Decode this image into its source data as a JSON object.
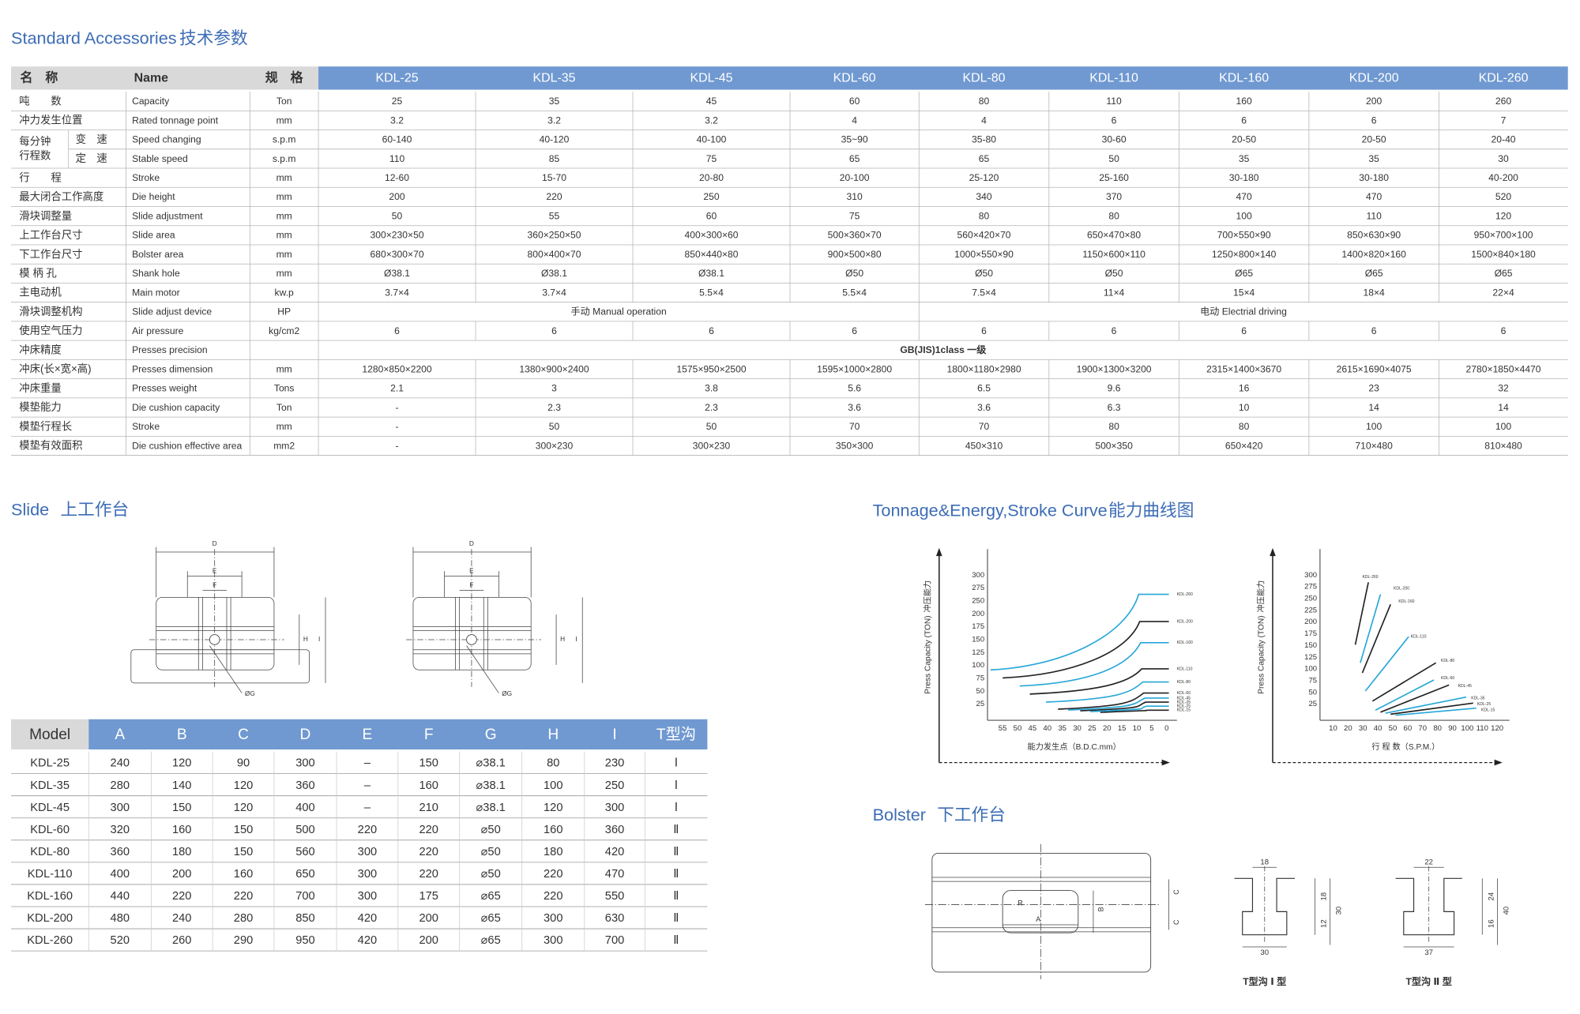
{
  "spec": {
    "title_en": "Standard Accessories",
    "title_cn": "技术参数",
    "header": {
      "cn": "名　称",
      "en": "Name",
      "unit": "规　格",
      "models": [
        "KDL-25",
        "KDL-35",
        "KDL-45",
        "KDL-60",
        "KDL-80",
        "KDL-110",
        "KDL-160",
        "KDL-200",
        "KDL-260"
      ]
    },
    "speed_group": [
      "每分钟",
      "行程数"
    ],
    "rows": [
      {
        "cn": "吨　　数",
        "en": "Capacity",
        "unit": "Ton",
        "values": [
          "25",
          "35",
          "45",
          "60",
          "80",
          "110",
          "160",
          "200",
          "260"
        ]
      },
      {
        "cn": "冲力发生位置",
        "en": "Rated tonnage point",
        "unit": "mm",
        "values": [
          "3.2",
          "3.2",
          "3.2",
          "4",
          "4",
          "6",
          "6",
          "6",
          "7"
        ]
      },
      {
        "sub_cn": "变　速",
        "en": "Speed changing",
        "unit": "s.p.m",
        "values": [
          "60-140",
          "40-120",
          "40-100",
          "35~90",
          "35-80",
          "30-60",
          "20-50",
          "20-50",
          "20-40"
        ]
      },
      {
        "sub_cn": "定　速",
        "en": "Stable speed",
        "unit": "s.p.m",
        "values": [
          "110",
          "85",
          "75",
          "65",
          "65",
          "50",
          "35",
          "35",
          "30"
        ]
      },
      {
        "cn": "行　　程",
        "en": "Stroke",
        "unit": "mm",
        "values": [
          "12-60",
          "15-70",
          "20-80",
          "20-100",
          "25-120",
          "25-160",
          "30-180",
          "30-180",
          "40-200"
        ]
      },
      {
        "cn": "最大闭合工作高度",
        "en": "Die height",
        "unit": "mm",
        "values": [
          "200",
          "220",
          "250",
          "310",
          "340",
          "370",
          "470",
          "470",
          "520"
        ]
      },
      {
        "cn": "滑块调整量",
        "en": "Slide adjustment",
        "unit": "mm",
        "values": [
          "50",
          "55",
          "60",
          "75",
          "80",
          "80",
          "100",
          "110",
          "120"
        ]
      },
      {
        "cn": "上工作台尺寸",
        "en": "Slide area",
        "unit": "mm",
        "values": [
          "300×230×50",
          "360×250×50",
          "400×300×60",
          "500×360×70",
          "560×420×70",
          "650×470×80",
          "700×550×90",
          "850×630×90",
          "950×700×100"
        ]
      },
      {
        "cn": "下工作台尺寸",
        "en": "Bolster area",
        "unit": "mm",
        "values": [
          "680×300×70",
          "800×400×70",
          "850×440×80",
          "900×500×80",
          "1000×550×90",
          "1150×600×110",
          "1250×800×140",
          "1400×820×160",
          "1500×840×180"
        ]
      },
      {
        "cn": "模 柄 孔",
        "en": "Shank hole",
        "unit": "mm",
        "values": [
          "Ø38.1",
          "Ø38.1",
          "Ø38.1",
          "Ø50",
          "Ø50",
          "Ø50",
          "Ø65",
          "Ø65",
          "Ø65"
        ]
      },
      {
        "cn": "主电动机",
        "en": "Main motor",
        "unit": "kw.p",
        "values": [
          "3.7×4",
          "3.7×4",
          "5.5×4",
          "5.5×4",
          "7.5×4",
          "11×4",
          "15×4",
          "18×4",
          "22×4"
        ]
      },
      {
        "cn": "滑块调整机构",
        "en": "Slide adjust device",
        "unit": "HP",
        "merged": [
          "手动 Manual operation",
          "电动  Electrial driving"
        ]
      },
      {
        "cn": "使用空气压力",
        "en": "Air pressure",
        "unit": "kg/cm2",
        "values": [
          "6",
          "6",
          "6",
          "6",
          "6",
          "6",
          "6",
          "6",
          "6"
        ]
      },
      {
        "cn": "冲床精度",
        "en": "Presses precision",
        "merged": [
          "GB(JIS)1class 一级"
        ]
      },
      {
        "cn": "冲床(长×宽×高)",
        "en": "Presses dimension",
        "unit": "mm",
        "values": [
          "1280×850×2200",
          "1380×900×2400",
          "1575×950×2500",
          "1595×1000×2800",
          "1800×1180×2980",
          "1900×1300×3200",
          "2315×1400×3670",
          "2615×1690×4075",
          "2780×1850×4470"
        ]
      },
      {
        "cn": "冲床重量",
        "en": "Presses weight",
        "unit": "Tons",
        "values": [
          "2.1",
          "3",
          "3.8",
          "5.6",
          "6.5",
          "9.6",
          "16",
          "23",
          "32"
        ]
      },
      {
        "cn": "模垫能力",
        "en": "Die cushion capacity",
        "unit": "Ton",
        "values": [
          "-",
          "2.3",
          "2.3",
          "3.6",
          "3.6",
          "6.3",
          "10",
          "14",
          "14"
        ]
      },
      {
        "cn": "模垫行程长",
        "en": "Stroke",
        "unit": "mm",
        "values": [
          "-",
          "50",
          "50",
          "70",
          "70",
          "80",
          "80",
          "100",
          "100"
        ]
      },
      {
        "cn": "模垫有效面积",
        "en": "Die cushion effective area",
        "unit": "mm2",
        "values": [
          "-",
          "300×230",
          "300×230",
          "350×300",
          "450×310",
          "500×350",
          "650×420",
          "710×480",
          "810×480"
        ]
      }
    ]
  },
  "slide": {
    "title_en": "Slide",
    "title_cn": "上工作台",
    "drawing_labels": {
      "D": "D",
      "E": "E",
      "F": "F",
      "H": "H",
      "I": "I",
      "G": "ØG"
    },
    "table": {
      "header": [
        "Model",
        "A",
        "B",
        "C",
        "D",
        "E",
        "F",
        "G",
        "H",
        "I",
        "T型沟"
      ],
      "rows": [
        [
          "KDL-25",
          "240",
          "120",
          "90",
          "300",
          "–",
          "150",
          "⌀38.1",
          "80",
          "230",
          "Ⅰ"
        ],
        [
          "KDL-35",
          "280",
          "140",
          "120",
          "360",
          "–",
          "160",
          "⌀38.1",
          "100",
          "250",
          "Ⅰ"
        ],
        [
          "KDL-45",
          "300",
          "150",
          "120",
          "400",
          "–",
          "210",
          "⌀38.1",
          "120",
          "300",
          "Ⅰ"
        ],
        [
          "KDL-60",
          "320",
          "160",
          "150",
          "500",
          "220",
          "220",
          "⌀50",
          "160",
          "360",
          "Ⅱ"
        ],
        [
          "KDL-80",
          "360",
          "180",
          "150",
          "560",
          "300",
          "220",
          "⌀50",
          "180",
          "420",
          "Ⅱ"
        ],
        [
          "KDL-110",
          "400",
          "200",
          "160",
          "650",
          "300",
          "220",
          "⌀50",
          "220",
          "470",
          "Ⅱ"
        ],
        [
          "KDL-160",
          "440",
          "220",
          "220",
          "700",
          "300",
          "175",
          "⌀65",
          "220",
          "550",
          "Ⅱ"
        ],
        [
          "KDL-200",
          "480",
          "240",
          "280",
          "850",
          "420",
          "200",
          "⌀65",
          "300",
          "630",
          "Ⅱ"
        ],
        [
          "KDL-260",
          "520",
          "260",
          "290",
          "950",
          "420",
          "200",
          "⌀65",
          "300",
          "700",
          "Ⅱ"
        ]
      ]
    }
  },
  "curve": {
    "title_en": "Tonnage&Energy,Stroke Curve",
    "title_cn": "能力曲线图",
    "chart1": {
      "y_label_en": "Press Capacity (TON)",
      "y_label_cn": "冲压能力",
      "yticks": [
        "300",
        "275",
        "250",
        "200",
        "175",
        "150",
        "125",
        "100",
        "75",
        "50",
        "25"
      ],
      "xticks": [
        "55",
        "50",
        "45",
        "40",
        "35",
        "30",
        "25",
        "20",
        "15",
        "10",
        "5",
        "0"
      ],
      "x_label": "能力发生点（B.D.C.mm）",
      "series": [
        "KDL-260",
        "KDL-200",
        "KDL-160",
        "KDL-110",
        "KDL-80",
        "KDL-60",
        "KDL-45",
        "KDL-35",
        "KDL-25",
        "KDL-15"
      ]
    },
    "chart2": {
      "y_label_en": "Press Capacity (TON)",
      "y_label_cn": "冲压能力",
      "yticks": [
        "300",
        "275",
        "250",
        "225",
        "200",
        "175",
        "150",
        "125",
        "100",
        "75",
        "50",
        "25"
      ],
      "xticks": [
        "10",
        "20",
        "30",
        "40",
        "50",
        "60",
        "70",
        "80",
        "90",
        "100",
        "110",
        "120"
      ],
      "x_label": "行 程 数（S.P.M.）",
      "series": [
        "KDL-260",
        "KDL-200",
        "KDL-160",
        "KDL-110",
        "KDL-80",
        "KDL-60",
        "KDL-45",
        "KDL-35",
        "KDL-25",
        "KDL-15"
      ]
    }
  },
  "bolster": {
    "title_en": "Bolster",
    "title_cn": "下工作台",
    "drawing_labels": {
      "A": "A",
      "B": "B",
      "C": "C",
      "R": "R"
    },
    "slot1": {
      "top": "18",
      "upper": "18",
      "lower": "12",
      "height": "30",
      "bottom": "30",
      "caption": "T型沟 Ⅰ 型"
    },
    "slot2": {
      "top": "22",
      "upper": "24",
      "lower": "16",
      "height": "40",
      "bottom": "37",
      "caption": "T型沟 Ⅱ 型"
    }
  }
}
